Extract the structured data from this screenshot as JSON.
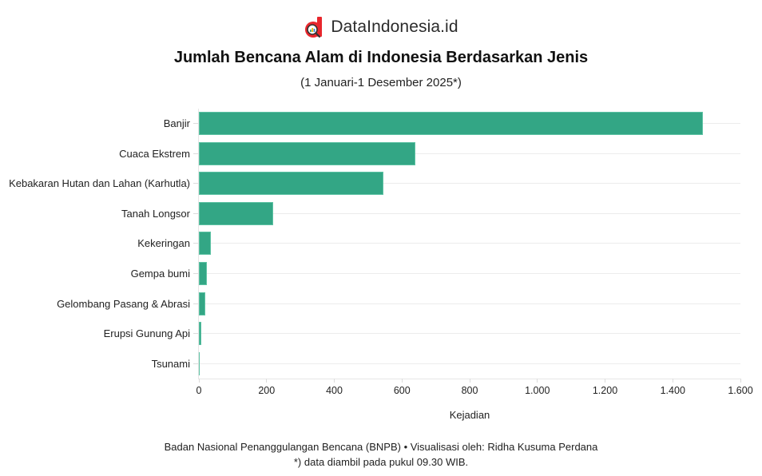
{
  "brand": {
    "name": "DataIndonesia.id",
    "logo_icon": "magnifier-d-logo-icon",
    "accent": "#e8262c"
  },
  "header": {
    "title": "Jumlah Bencana Alam di Indonesia Berdasarkan Jenis",
    "subtitle": "(1 Januari-1 Desember 2025*)"
  },
  "footer": {
    "source": "Badan Nasional Penanggulangan Bencana (BNPB) • Visualisasi oleh: Ridha Kusuma Perdana",
    "note": "*) data diambil pada pukul 09.30 WIB."
  },
  "colors": {
    "bar": "#33a685",
    "grid": "#ececec"
  },
  "chart_data": {
    "type": "bar",
    "orientation": "horizontal",
    "title": "Jumlah Bencana Alam di Indonesia Berdasarkan Jenis",
    "subtitle": "(1 Januari-1 Desember 2025*)",
    "categories": [
      "Banjir",
      "Cuaca Ekstrem",
      "Kebakaran Hutan dan Lahan (Karhutla)",
      "Tanah Longsor",
      "Kekeringan",
      "Gempa bumi",
      "Gelombang Pasang & Abrasi",
      "Erupsi Gunung Api",
      "Tsunami"
    ],
    "values": [
      1489,
      639,
      546,
      219,
      36,
      23,
      20,
      7,
      1
    ],
    "xlabel": "Kejadian",
    "ylabel": "",
    "xlim": [
      0,
      1600
    ],
    "xticks": [
      0,
      200,
      400,
      600,
      800,
      1000,
      1200,
      1400,
      1600
    ],
    "xtick_labels": [
      "0",
      "200",
      "400",
      "600",
      "800",
      "1.000",
      "1.200",
      "1.400",
      "1.600"
    ],
    "grid": true,
    "legend": null
  }
}
